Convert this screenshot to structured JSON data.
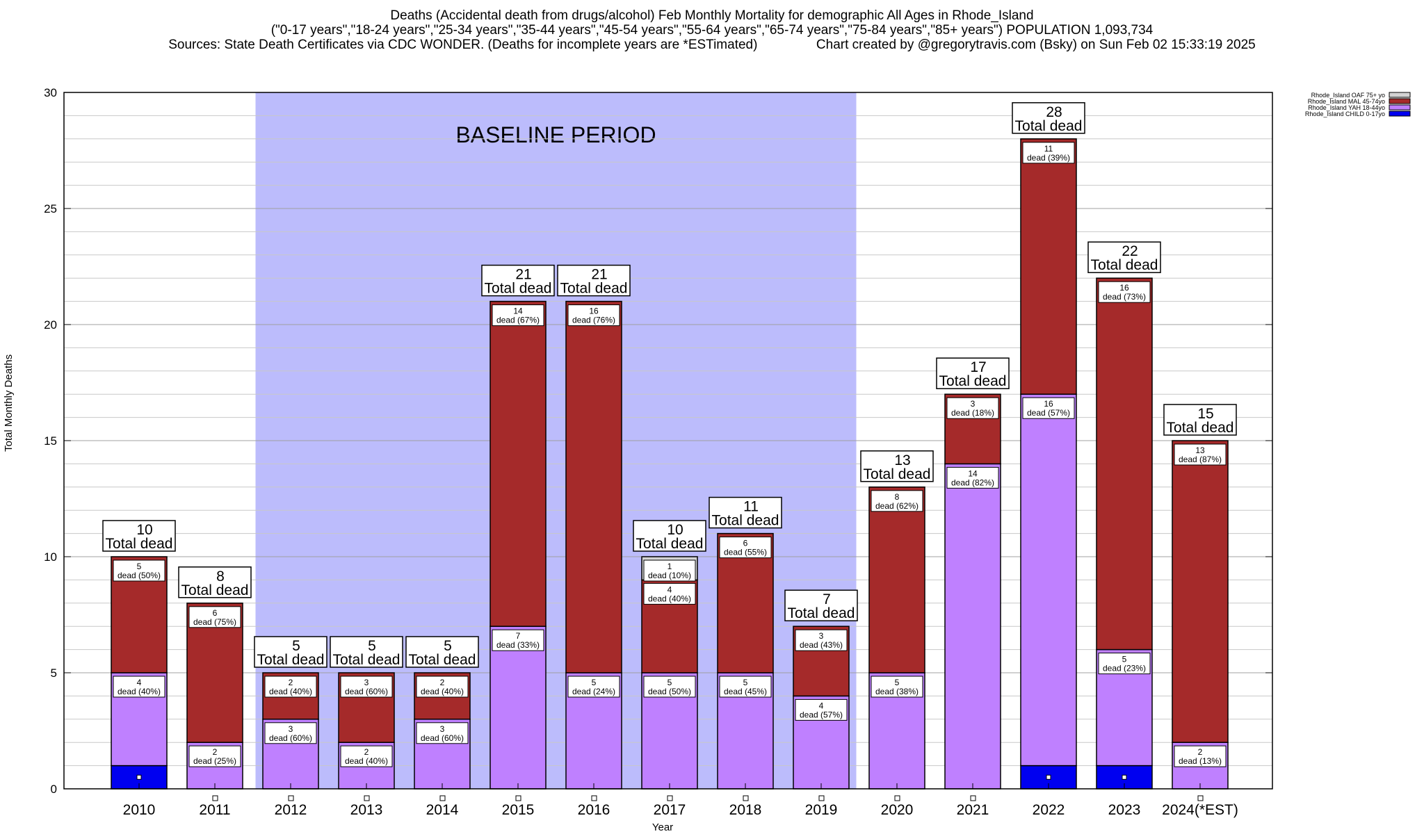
{
  "header": {
    "title": "Deaths (Accidental death from drugs/alcohol) Feb Monthly Mortality for demographic All Ages in Rhode_Island",
    "subtitle": "(\"0-17 years\",\"18-24 years\",\"25-34 years\",\"35-44 years\",\"45-54 years\",\"55-64 years\",\"65-74 years\",\"75-84 years\",\"85+ years\") POPULATION 1,093,734",
    "sources": "Sources: State Death Certificates via CDC WONDER. (Deaths for incomplete years are *ESTimated)",
    "credit": "Chart created by @gregorytravis.com (Bsky) on Sun Feb 02 15:33:19 2025"
  },
  "chart_data": {
    "type": "bar",
    "stacked": true,
    "xlabel": "Year",
    "ylabel": "Total Monthly Deaths",
    "ylim": [
      0,
      30
    ],
    "yticks": [
      0,
      5,
      10,
      15,
      20,
      25,
      30
    ],
    "grid": true,
    "legend_position": "top-right",
    "categories": [
      "2010",
      "2011",
      "2012",
      "2013",
      "2014",
      "2015",
      "2016",
      "2017",
      "2018",
      "2019",
      "2020",
      "2021",
      "2022",
      "2023",
      "2024(*EST)"
    ],
    "baseline": {
      "label": "BASELINE PERIOD",
      "from": "2012",
      "to": "2019",
      "color": "#bcbcfc"
    },
    "series": [
      {
        "name": "Rhode_Island CHILD 0-17yo",
        "color": "#0000f0",
        "values": [
          1,
          0,
          0,
          0,
          0,
          0,
          0,
          0,
          0,
          0,
          0,
          0,
          1,
          1,
          0
        ],
        "labels": [
          null,
          null,
          null,
          null,
          null,
          null,
          null,
          null,
          null,
          null,
          null,
          null,
          null,
          null,
          null
        ]
      },
      {
        "name": "Rhode_Island YAH 18-44yo",
        "color": "#bf80ff",
        "values": [
          4,
          2,
          3,
          2,
          3,
          7,
          5,
          5,
          5,
          4,
          5,
          14,
          16,
          5,
          2
        ],
        "labels": [
          "dead (40%)",
          "dead (25%)",
          "dead (60%)",
          "dead (40%)",
          "dead (60%)",
          "dead (33%)",
          "dead (24%)",
          "dead (50%)",
          "dead (45%)",
          "dead (57%)",
          "dead (38%)",
          "dead (82%)",
          "dead (57%)",
          "dead (23%)",
          "dead (13%)"
        ]
      },
      {
        "name": "Rhode_Island MAL 45-74yo",
        "color": "#a52a2a",
        "values": [
          5,
          6,
          2,
          3,
          2,
          14,
          16,
          4,
          6,
          3,
          8,
          3,
          11,
          16,
          13
        ],
        "labels": [
          "dead (50%)",
          "dead (75%)",
          "dead (40%)",
          "dead (60%)",
          "dead (40%)",
          "dead (67%)",
          "dead (76%)",
          "dead (40%)",
          "dead (55%)",
          "dead (43%)",
          "dead (62%)",
          "dead (18%)",
          "dead (39%)",
          "dead (73%)",
          "dead (87%)"
        ]
      },
      {
        "name": "Rhode_Island OAF 75+ yo",
        "color": "#d3d3d3",
        "values": [
          0,
          0,
          0,
          0,
          0,
          0,
          0,
          1,
          0,
          0,
          0,
          0,
          0,
          0,
          0
        ],
        "labels": [
          null,
          null,
          null,
          null,
          null,
          null,
          null,
          "dead (10%)",
          null,
          null,
          null,
          null,
          null,
          null,
          null
        ]
      }
    ],
    "totals": [
      10,
      8,
      5,
      5,
      5,
      21,
      21,
      10,
      11,
      7,
      13,
      17,
      28,
      22,
      15
    ],
    "total_label": "Total dead"
  }
}
